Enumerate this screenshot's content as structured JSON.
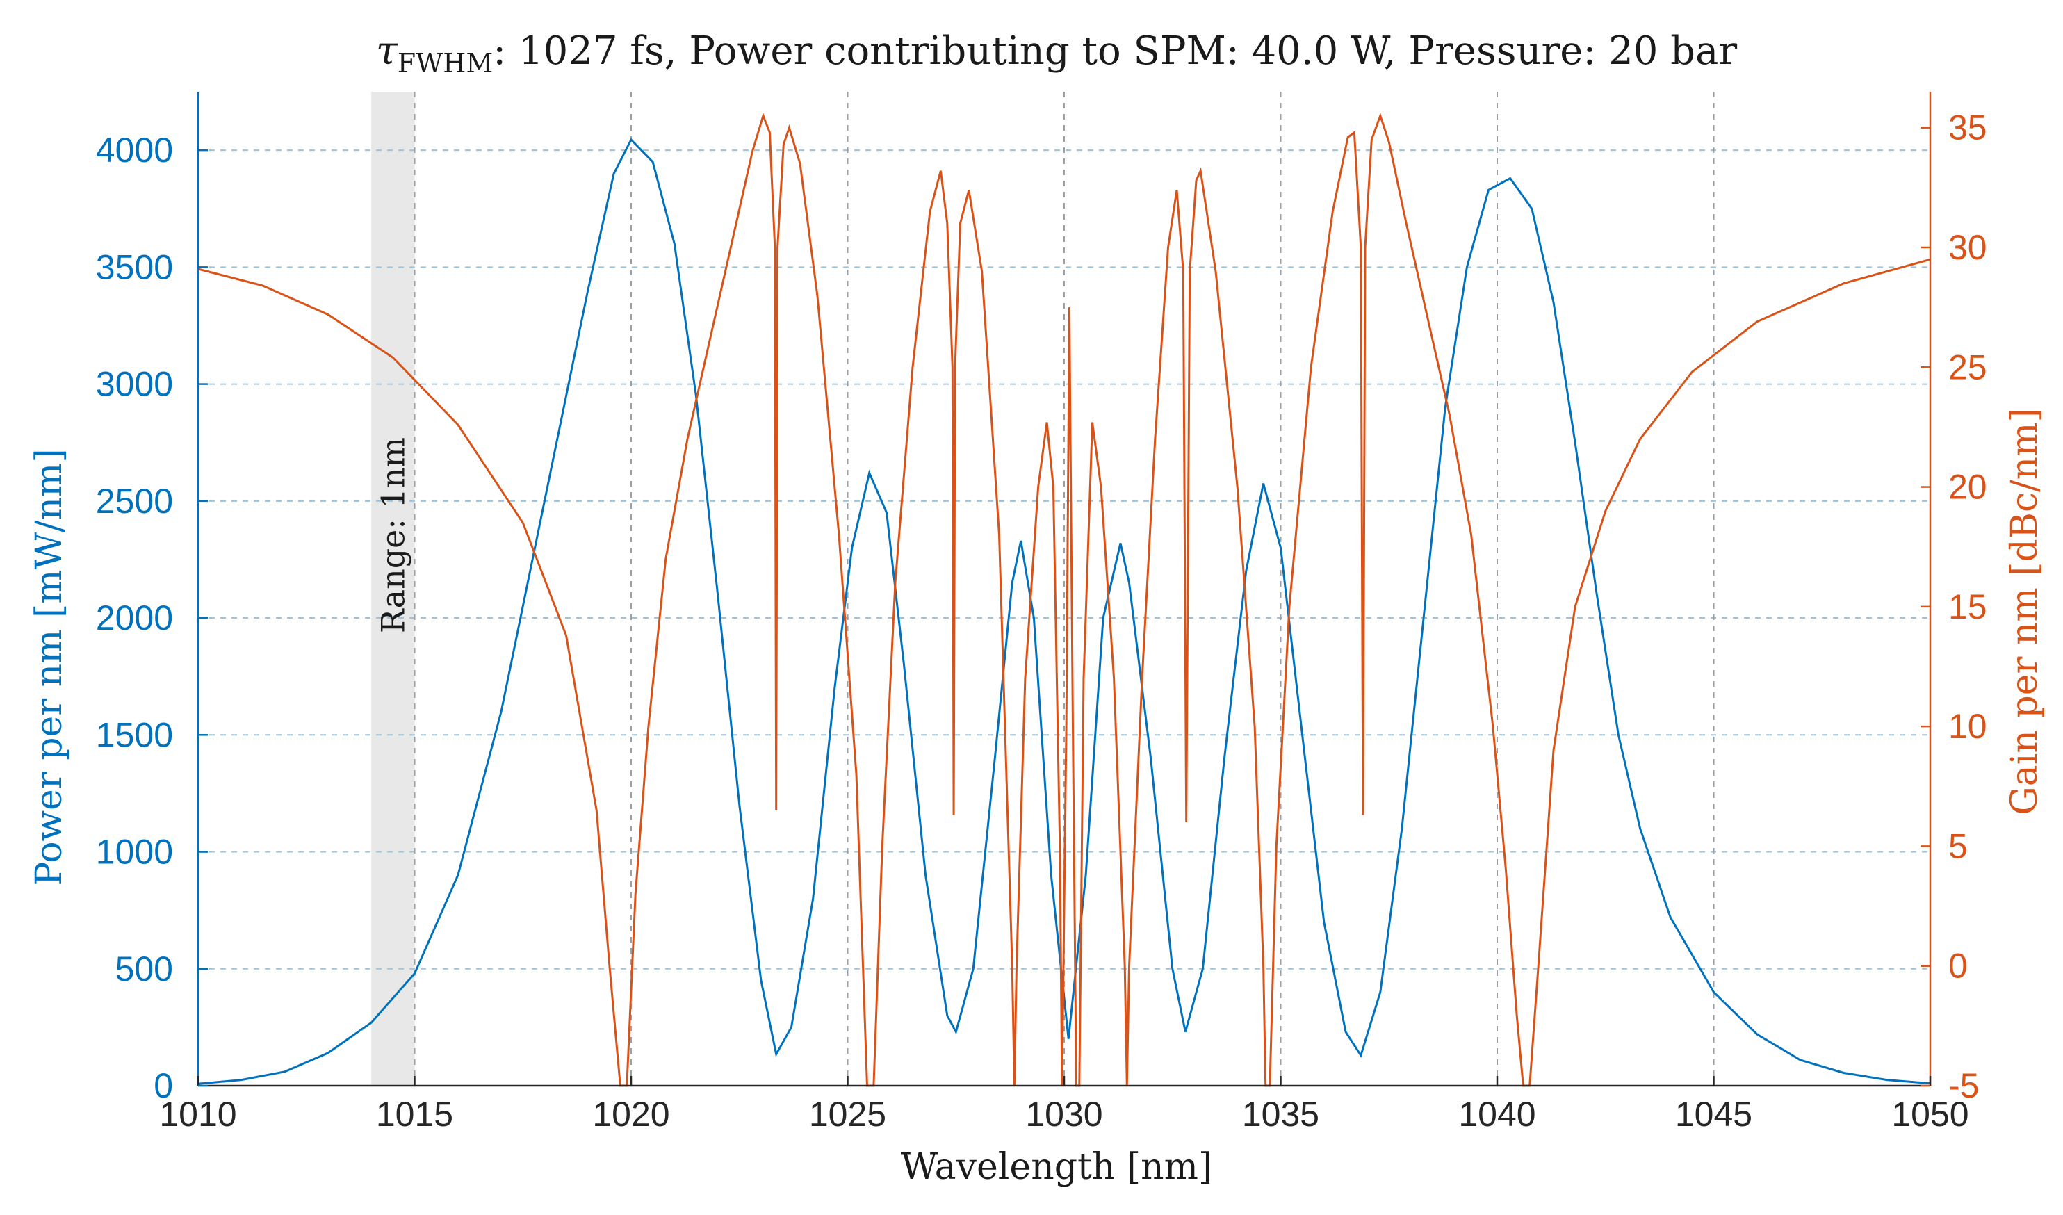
{
  "chart_data": {
    "type": "line",
    "title": {
      "symbol": "τ",
      "subscript": "FWHM",
      "rest": ": 1027 fs, Power contributing to SPM: 40.0 W, Pressure: 20 bar"
    },
    "xlabel": "Wavelength [nm]",
    "ylabel_left": "Power per nm [mW/nm]",
    "ylabel_right": "Gain per nm [dBc/nm]",
    "xlim": [
      1010,
      1050
    ],
    "ylim_left": [
      0,
      4250
    ],
    "ylim_right": [
      -5,
      36.5
    ],
    "x_ticks": [
      "1010",
      "1015",
      "1020",
      "1025",
      "1030",
      "1035",
      "1040",
      "1045",
      "1050"
    ],
    "y_left_ticks": [
      "0",
      "500",
      "1000",
      "1500",
      "2000",
      "2500",
      "3000",
      "3500",
      "4000"
    ],
    "y_right_ticks": [
      "-5",
      "0",
      "5",
      "10",
      "15",
      "20",
      "25",
      "30",
      "35"
    ],
    "grid": true,
    "annotation": {
      "text": "Range: 1nm",
      "x_range": [
        1014.0,
        1015.0
      ]
    },
    "colors": {
      "power": "#0072BD",
      "gain": "#D95319",
      "grid_h": "#9cc3d8",
      "grid_v": "#9aa0a6",
      "shade": "#e8e8e8"
    },
    "series": [
      {
        "axis": "left",
        "points": [
          [
            1010,
            8
          ],
          [
            1011,
            25
          ],
          [
            1012,
            60
          ],
          [
            1013,
            140
          ],
          [
            1014,
            270
          ],
          [
            1015,
            480
          ],
          [
            1016,
            900
          ],
          [
            1017,
            1600
          ],
          [
            1018,
            2500
          ],
          [
            1019,
            3400
          ],
          [
            1019.6,
            3900
          ],
          [
            1020.0,
            4045
          ],
          [
            1020.5,
            3950
          ],
          [
            1021.0,
            3600
          ],
          [
            1021.5,
            2950
          ],
          [
            1022.0,
            2100
          ],
          [
            1022.5,
            1200
          ],
          [
            1023.0,
            450
          ],
          [
            1023.35,
            135
          ],
          [
            1023.7,
            250
          ],
          [
            1024.2,
            800
          ],
          [
            1024.7,
            1700
          ],
          [
            1025.1,
            2300
          ],
          [
            1025.5,
            2620
          ],
          [
            1025.9,
            2450
          ],
          [
            1026.3,
            1800
          ],
          [
            1026.8,
            900
          ],
          [
            1027.3,
            300
          ],
          [
            1027.5,
            230
          ],
          [
            1027.9,
            500
          ],
          [
            1028.4,
            1400
          ],
          [
            1028.8,
            2150
          ],
          [
            1029.0,
            2330
          ],
          [
            1029.3,
            2000
          ],
          [
            1029.7,
            900
          ],
          [
            1030.1,
            200
          ],
          [
            1030.5,
            900
          ],
          [
            1030.9,
            2000
          ],
          [
            1031.3,
            2320
          ],
          [
            1031.5,
            2150
          ],
          [
            1032.0,
            1400
          ],
          [
            1032.5,
            500
          ],
          [
            1032.8,
            230
          ],
          [
            1033.2,
            500
          ],
          [
            1033.7,
            1400
          ],
          [
            1034.2,
            2200
          ],
          [
            1034.6,
            2575
          ],
          [
            1035.0,
            2300
          ],
          [
            1035.5,
            1500
          ],
          [
            1036.0,
            700
          ],
          [
            1036.5,
            230
          ],
          [
            1036.85,
            130
          ],
          [
            1037.3,
            400
          ],
          [
            1037.8,
            1100
          ],
          [
            1038.3,
            2000
          ],
          [
            1038.8,
            2900
          ],
          [
            1039.3,
            3500
          ],
          [
            1039.8,
            3830
          ],
          [
            1040.3,
            3880
          ],
          [
            1040.8,
            3750
          ],
          [
            1041.3,
            3350
          ],
          [
            1041.8,
            2750
          ],
          [
            1042.3,
            2100
          ],
          [
            1042.8,
            1500
          ],
          [
            1043.3,
            1100
          ],
          [
            1044.0,
            720
          ],
          [
            1045.0,
            400
          ],
          [
            1046.0,
            220
          ],
          [
            1047.0,
            110
          ],
          [
            1048.0,
            55
          ],
          [
            1049.0,
            25
          ],
          [
            1050.0,
            10
          ]
        ]
      },
      {
        "axis": "right",
        "points": [
          [
            1010,
            29.1
          ],
          [
            1011.5,
            28.4
          ],
          [
            1013,
            27.2
          ],
          [
            1014.5,
            25.4
          ],
          [
            1016,
            22.6
          ],
          [
            1017.5,
            18.5
          ],
          [
            1018.5,
            13.8
          ],
          [
            1019.2,
            6.5
          ],
          [
            1019.5,
            0
          ],
          [
            1019.75,
            -5
          ],
          [
            1019.9,
            -5
          ],
          [
            1020.1,
            3
          ],
          [
            1020.4,
            10
          ],
          [
            1020.8,
            17
          ],
          [
            1021.3,
            22
          ],
          [
            1021.8,
            26
          ],
          [
            1022.3,
            30
          ],
          [
            1022.8,
            34
          ],
          [
            1023.05,
            35.5
          ],
          [
            1023.2,
            34.8
          ],
          [
            1023.32,
            30
          ],
          [
            1023.35,
            6.5
          ],
          [
            1023.38,
            30
          ],
          [
            1023.52,
            34.3
          ],
          [
            1023.65,
            35
          ],
          [
            1023.9,
            33.5
          ],
          [
            1024.3,
            28
          ],
          [
            1024.8,
            18
          ],
          [
            1025.2,
            8
          ],
          [
            1025.45,
            -5
          ],
          [
            1025.6,
            -5
          ],
          [
            1025.8,
            5
          ],
          [
            1026.1,
            16
          ],
          [
            1026.5,
            25
          ],
          [
            1026.9,
            31.5
          ],
          [
            1027.15,
            33.2
          ],
          [
            1027.3,
            31
          ],
          [
            1027.42,
            25
          ],
          [
            1027.45,
            6.3
          ],
          [
            1027.48,
            25
          ],
          [
            1027.6,
            31
          ],
          [
            1027.8,
            32.4
          ],
          [
            1028.1,
            29
          ],
          [
            1028.5,
            18
          ],
          [
            1028.8,
            0
          ],
          [
            1028.85,
            -5
          ],
          [
            1028.9,
            0
          ],
          [
            1029.1,
            12
          ],
          [
            1029.4,
            20
          ],
          [
            1029.6,
            22.7
          ],
          [
            1029.75,
            20
          ],
          [
            1029.9,
            5
          ],
          [
            1029.95,
            -5
          ],
          [
            1030.05,
            10
          ],
          [
            1030.12,
            27.5
          ],
          [
            1030.2,
            10
          ],
          [
            1030.28,
            -5
          ],
          [
            1030.35,
            -5
          ],
          [
            1030.45,
            12
          ],
          [
            1030.65,
            22.7
          ],
          [
            1030.85,
            20
          ],
          [
            1031.15,
            12
          ],
          [
            1031.4,
            0
          ],
          [
            1031.45,
            -5
          ],
          [
            1031.5,
            0
          ],
          [
            1031.8,
            12
          ],
          [
            1032.1,
            22
          ],
          [
            1032.4,
            30
          ],
          [
            1032.6,
            32.4
          ],
          [
            1032.75,
            29
          ],
          [
            1032.82,
            6
          ],
          [
            1032.9,
            29
          ],
          [
            1033.05,
            32.8
          ],
          [
            1033.15,
            33.2
          ],
          [
            1033.5,
            29
          ],
          [
            1034.0,
            20
          ],
          [
            1034.4,
            10
          ],
          [
            1034.6,
            0
          ],
          [
            1034.65,
            -5
          ],
          [
            1034.75,
            -5
          ],
          [
            1034.9,
            5
          ],
          [
            1035.2,
            15
          ],
          [
            1035.7,
            25
          ],
          [
            1036.2,
            31.5
          ],
          [
            1036.55,
            34.6
          ],
          [
            1036.7,
            34.8
          ],
          [
            1036.85,
            30
          ],
          [
            1036.9,
            6.3
          ],
          [
            1036.95,
            30
          ],
          [
            1037.1,
            34.5
          ],
          [
            1037.3,
            35.5
          ],
          [
            1037.5,
            34.4
          ],
          [
            1037.9,
            31
          ],
          [
            1038.4,
            27
          ],
          [
            1038.9,
            23
          ],
          [
            1039.4,
            18
          ],
          [
            1039.9,
            10
          ],
          [
            1040.2,
            4
          ],
          [
            1040.45,
            -2
          ],
          [
            1040.6,
            -5
          ],
          [
            1040.75,
            -5
          ],
          [
            1040.95,
            0
          ],
          [
            1041.3,
            9
          ],
          [
            1041.8,
            15
          ],
          [
            1042.5,
            19
          ],
          [
            1043.3,
            22
          ],
          [
            1044.5,
            24.8
          ],
          [
            1046,
            26.9
          ],
          [
            1048,
            28.5
          ],
          [
            1050,
            29.5
          ]
        ]
      }
    ]
  }
}
